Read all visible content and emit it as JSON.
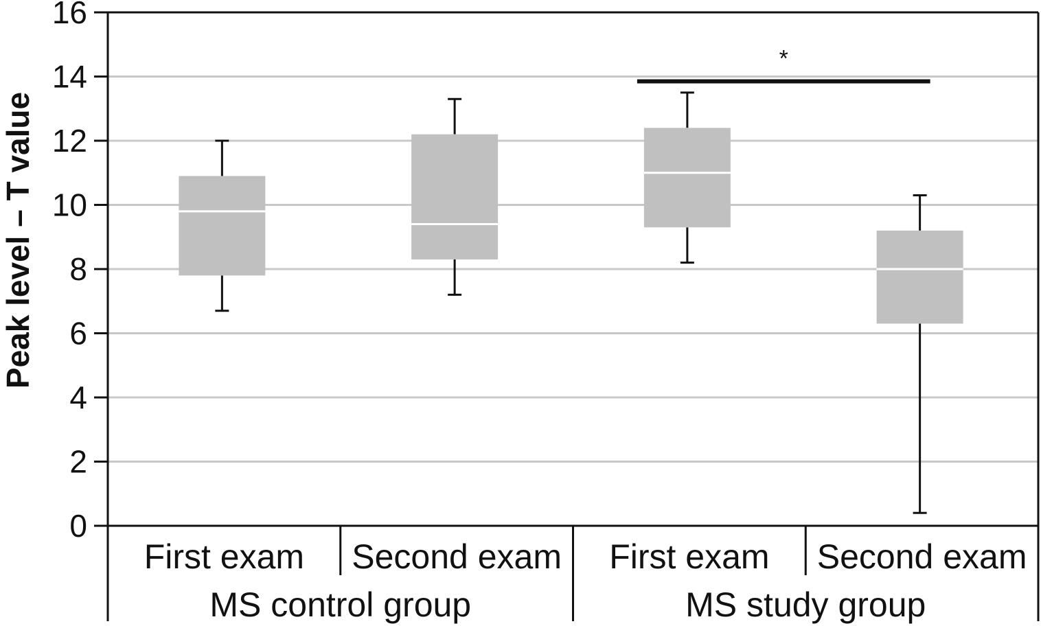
{
  "chart_data": {
    "type": "box",
    "ylabel": "Peak level – T value",
    "ylim": [
      0,
      16
    ],
    "yticks": [
      0,
      2,
      4,
      6,
      8,
      10,
      12,
      14,
      16
    ],
    "grid": true,
    "categories": [
      "First exam",
      "Second exam",
      "First exam",
      "Second exam"
    ],
    "groups": [
      {
        "label": "MS control group",
        "members": [
          0,
          1
        ]
      },
      {
        "label": "MS study group",
        "members": [
          2,
          3
        ]
      }
    ],
    "boxes": [
      {
        "label": "First exam",
        "group": "MS control group",
        "min": 6.7,
        "q1": 7.8,
        "median": 9.8,
        "q3": 10.9,
        "max": 12.0
      },
      {
        "label": "Second exam",
        "group": "MS control group",
        "min": 7.2,
        "q1": 8.3,
        "median": 9.4,
        "q3": 12.2,
        "max": 13.3
      },
      {
        "label": "First exam",
        "group": "MS study group",
        "min": 8.2,
        "q1": 9.3,
        "median": 11.0,
        "q3": 12.4,
        "max": 13.5
      },
      {
        "label": "Second exam",
        "group": "MS study group",
        "min": 0.4,
        "q1": 6.3,
        "median": 8.0,
        "q3": 9.2,
        "max": 10.3
      }
    ],
    "annotations": [
      {
        "text": "*",
        "from": 2,
        "to": 3,
        "y": 13.85
      }
    ],
    "colors": {
      "box": "#c0c0c0",
      "median": "#ffffff",
      "whisker": "#111111",
      "grid": "#c8c8c8",
      "axis": "#111111"
    }
  }
}
